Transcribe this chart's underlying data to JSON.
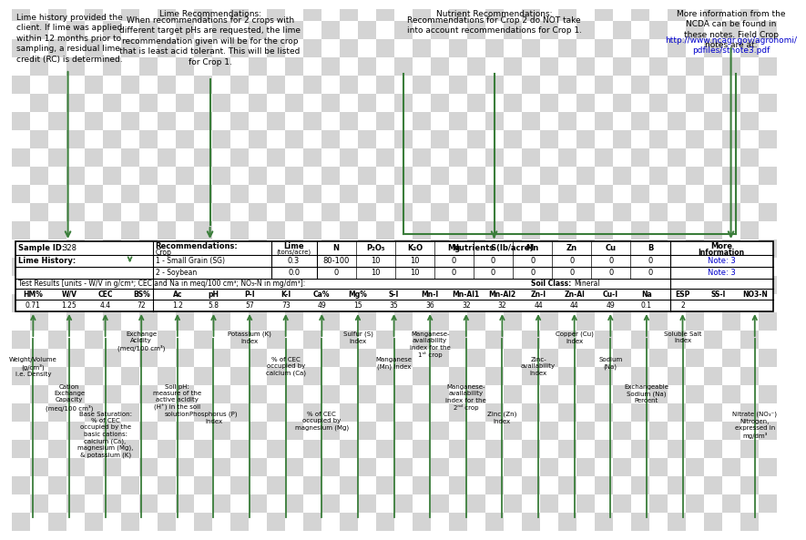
{
  "green": "#3a7d3a",
  "blue_link": "#0000cc",
  "top_notes": {
    "lime_hist": "Lime history provided the\nclient. If lime was applied\nwithin 12 months prior to\nsampling, a residual lime\ncredit (RC) is determined.",
    "lime_rec_title": "Lime Recommendations:",
    "lime_rec_body": "When recommendations for 2 crops with\ndifferent target pHs are requested, the lime\nrecommendation given will be for the crop\nthat is least acid tolerant. This will be listed\nfor Crop 1.",
    "nutrient_rec_title": "Nutrient Recommendations:",
    "nutrient_rec_body": "Recommendations for Crop 2 do NOT take\ninto account recommendations for Crop 1.",
    "more_info_body": "More information from the\nNCDA can be found in\nthese notes. Field Crop\nnotes are at:",
    "more_info_link": "http://www.ncagr.gov/agronomi/\npdfiles/stnote3.pdf"
  },
  "table": {
    "sample_id": "328",
    "rec_header_cols": [
      "Recommendations:",
      "Lime\n(tons/acre)",
      "N",
      "P₂O₅",
      "K₂O",
      "Mg",
      "S",
      "Mn",
      "Zn",
      "Cu",
      "B"
    ],
    "crop1": [
      "1 - Small Grain (SG)",
      "0.3",
      "80-100",
      "10",
      "10",
      "0",
      "0",
      "0",
      "0",
      "0",
      "0"
    ],
    "crop2": [
      "2 - Soybean",
      "0.0",
      "0",
      "10",
      "10",
      "0",
      "0",
      "0",
      "0",
      "0",
      "0"
    ],
    "test_results_label": "Test Results [units - W/V in g/cm³; CEC and Na in meq/100 cm³; NO₃-N in mg/dm³]:",
    "soil_class_label": "Soil Class:",
    "soil_class_val": "Mineral",
    "headers": [
      "HM%",
      "W/V",
      "CEC",
      "BS%",
      "Ac",
      "pH",
      "P-I",
      "K-I",
      "Ca%",
      "Mg%",
      "S-I",
      "Mn-I",
      "Mn-Al1",
      "Mn-Al2",
      "Zn-I",
      "Zn-Al",
      "Cu-I",
      "Na",
      "ESP",
      "SS-I",
      "NO3-N"
    ],
    "values": [
      "0.71",
      "1.25",
      "4.4",
      "72",
      "1.2",
      "5.8",
      "57",
      "73",
      "49",
      "15",
      "35",
      "36",
      "32",
      "32",
      "44",
      "44",
      "49",
      "0.1",
      "2",
      "",
      ""
    ]
  },
  "arrows_bottom": [
    {
      "col": 0,
      "label": "Weight/Volume\n(g/cm³)\ni.e. Density",
      "level": 2
    },
    {
      "col": 1,
      "label": "Cation\nExchange\nCapacity\n(meq/100 cm³)",
      "level": 3
    },
    {
      "col": 2,
      "label": "Base Saturation:\n% of CEC\noccupied by the\nbasic cations:\ncalcium (Ca),\nmagnesium (Mg),\n& potassium (K)",
      "level": 4
    },
    {
      "col": 3,
      "label": "Exchange\nAcidity\n(meq/100 cm³)",
      "level": 1
    },
    {
      "col": 4,
      "label": "Soil pH:\nmeasure of the\nactive acidity\n(H⁺) in the soil\nsolution",
      "level": 3
    },
    {
      "col": 5,
      "label": "Phosphorus (P)\nIndex",
      "level": 4
    },
    {
      "col": 6,
      "label": "Potassium (K)\nIndex",
      "level": 1
    },
    {
      "col": 7,
      "label": "% of CEC\noccupied by\ncalcium (Ca)",
      "level": 2
    },
    {
      "col": 8,
      "label": "% of CEC\noccupied by\nmagnesium (Mg)",
      "level": 4
    },
    {
      "col": 9,
      "label": "Sulfur (S)\nIndex",
      "level": 1
    },
    {
      "col": 10,
      "label": "Manganese\n(Mn) Index",
      "level": 2
    },
    {
      "col": 11,
      "label": "Manganese-\navailability\nindex for the\n1ˢᵗ crop",
      "level": 1
    },
    {
      "col": 12,
      "label": "Manganese-\navailability\nindex for the\n2ⁿᵈ crop",
      "level": 3
    },
    {
      "col": 13,
      "label": "Zinc (Zn)\nIndex",
      "level": 4
    },
    {
      "col": 14,
      "label": "Zinc-\navailability\nIndex",
      "level": 2
    },
    {
      "col": 15,
      "label": "Copper (Cu)\nIndex",
      "level": 1
    },
    {
      "col": 16,
      "label": "Sodium\n(Na)",
      "level": 2
    },
    {
      "col": 17,
      "label": "Exchangeable\nSodium (Na)\nPercent",
      "level": 3
    },
    {
      "col": 18,
      "label": "Soluble Salt\nIndex",
      "level": 1
    },
    {
      "col": 20,
      "label": "Nitrate (NO₃⁻)\nNitrogen,\nexpressed in\nmg/dm³",
      "level": 4
    }
  ]
}
